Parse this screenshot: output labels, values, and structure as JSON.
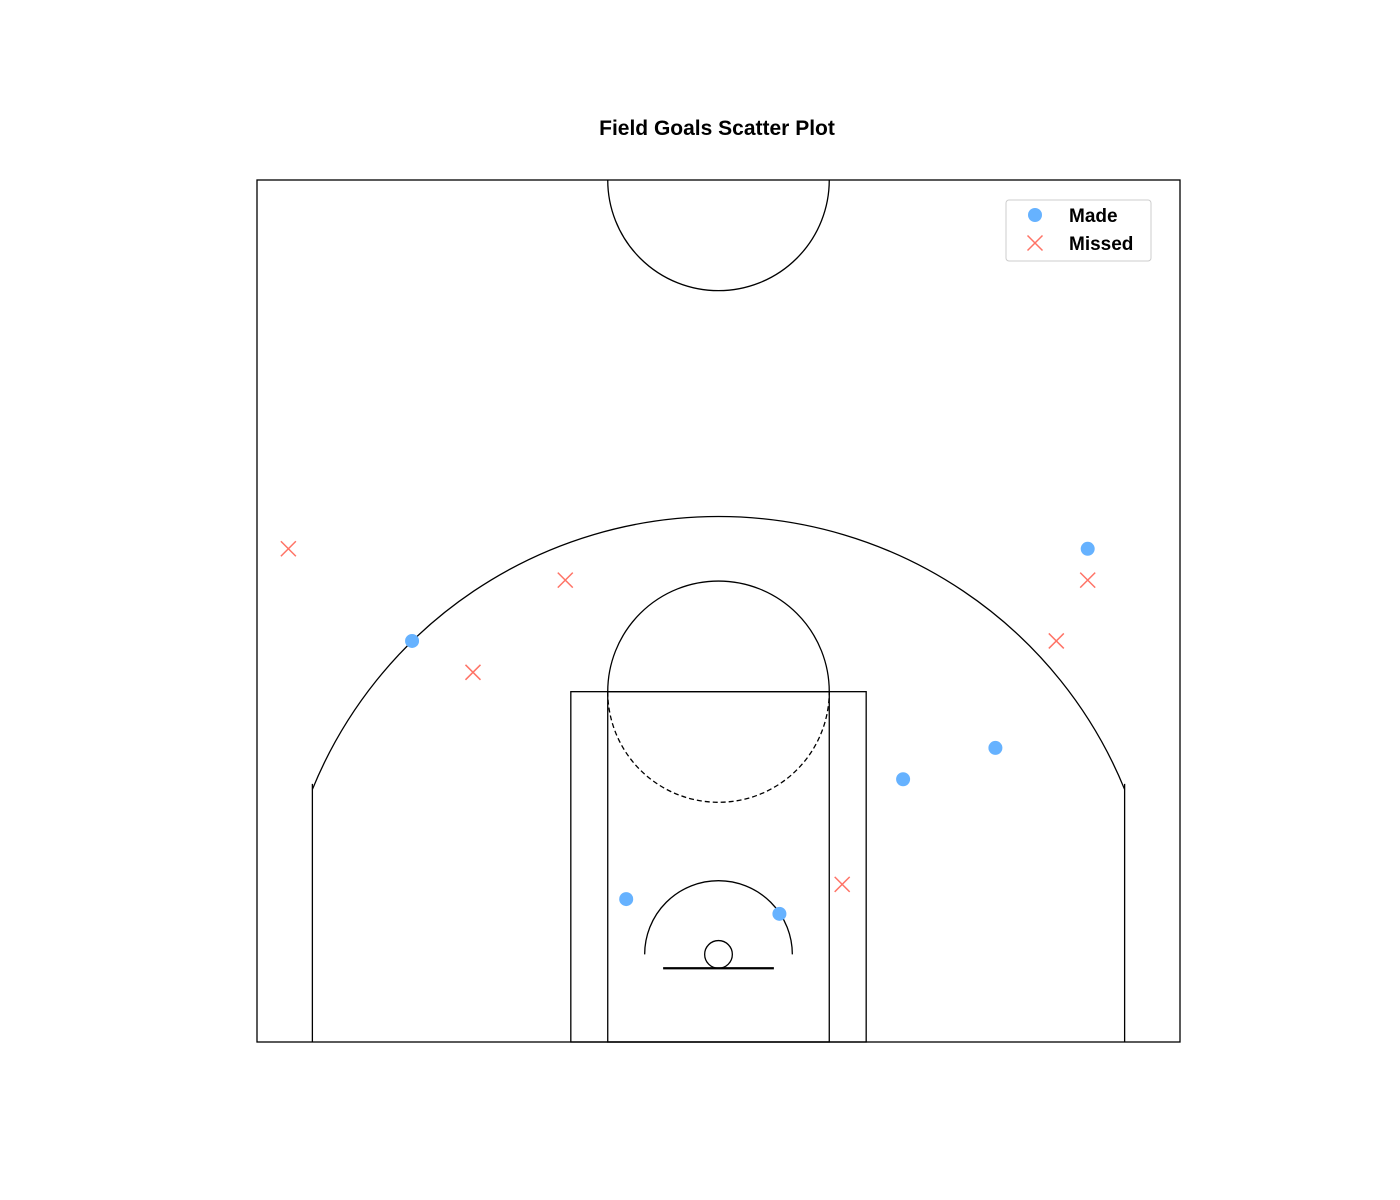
{
  "chart_data": {
    "type": "scatter",
    "title": "Field Goals Scatter Plot",
    "xlabel": "",
    "ylabel": "",
    "xlim": [
      -250,
      250
    ],
    "ylim": [
      -47.5,
      420
    ],
    "grid": false,
    "legend_position": "top-right",
    "series": [
      {
        "name": "Made",
        "marker": "circle",
        "color": "#66b2ff",
        "x": [
          -166,
          -50,
          33,
          100,
          150,
          200
        ],
        "y": [
          170,
          30,
          22,
          95,
          112,
          220
        ]
      },
      {
        "name": "Missed",
        "marker": "x",
        "color": "#ff7366",
        "x": [
          -233,
          -83,
          -133,
          67,
          183,
          200
        ],
        "y": [
          220,
          203,
          153,
          38,
          170,
          203
        ]
      }
    ],
    "court": {
      "hoop": [
        0,
        0
      ],
      "three_point_radius": 237.5,
      "restricted_area_radius": 40,
      "free_throw_circle_radius": 60,
      "center_circle_radius": 60
    }
  }
}
